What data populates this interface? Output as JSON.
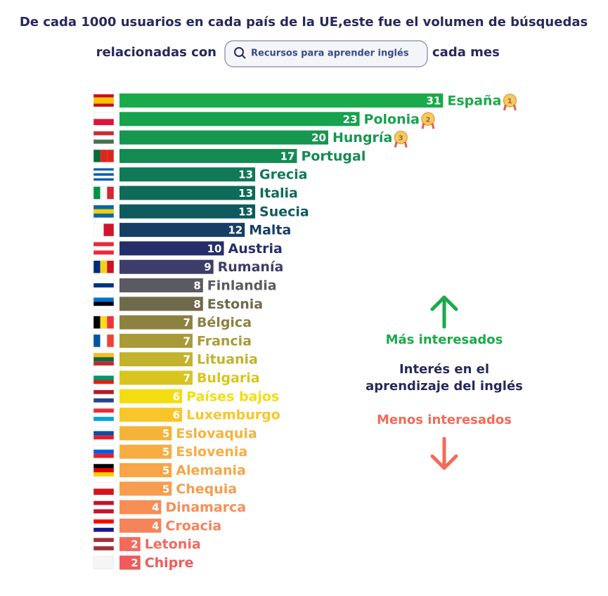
{
  "chart_data": {
    "type": "bar",
    "orientation": "horizontal",
    "title_line1": "De cada 1000 usuarios en cada país de la UE,este fue el volumen de búsquedas",
    "title_before_search": "relacionadas con",
    "search_query": "Recursos para aprender inglés",
    "title_after_search": "cada mes",
    "categories": [
      "España",
      "Polonia",
      "Hungría",
      "Portugal",
      "Grecia",
      "Italia",
      "Suecia",
      "Malta",
      "Austria",
      "Rumanía",
      "Finlandia",
      "Estonia",
      "Bélgica",
      "Francia",
      "Lituania",
      "Bulgaria",
      "Países bajos",
      "Luxemburgo",
      "Eslovaquia",
      "Eslovenia",
      "Alemania",
      "Chequia",
      "Dinamarca",
      "Croacia",
      "Letonia",
      "Chipre"
    ],
    "values": [
      31,
      23,
      20,
      17,
      13,
      13,
      13,
      12,
      10,
      9,
      8,
      8,
      7,
      7,
      7,
      7,
      6,
      6,
      5,
      5,
      5,
      5,
      4,
      4,
      2,
      2
    ],
    "colors": [
      "#1aaa4a",
      "#17a24d",
      "#159750",
      "#138a52",
      "#0f7a55",
      "#0d6b58",
      "#0e5a5e",
      "#173f66",
      "#252e6b",
      "#3c3d6a",
      "#5a5a62",
      "#6f6a4c",
      "#8d8140",
      "#a99a38",
      "#c3b22c",
      "#d8c520",
      "#f3dd10",
      "#f8c62a",
      "#f6b33a",
      "#f7ad42",
      "#f7a548",
      "#f79d4f",
      "#f68e55",
      "#f5845a",
      "#f26a5d",
      "#f05a5c"
    ],
    "medal_labels": [
      "1",
      "2",
      "3"
    ],
    "annotations": {
      "more": "Más interesados",
      "interest": [
        "Interés en el",
        "aprendizaje del inglés"
      ],
      "less": "Menos interesados"
    }
  }
}
